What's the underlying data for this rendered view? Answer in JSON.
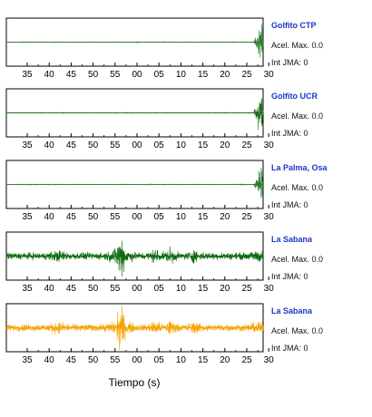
{
  "chart_data": {
    "type": "line",
    "xlabel": "Tiempo (s)",
    "tick_labels": [
      "35",
      "40",
      "45",
      "50",
      "55",
      "00",
      "05",
      "10",
      "15",
      "20",
      "25",
      "30"
    ],
    "panels": [
      {
        "station": "Golfito CTP",
        "peak_accel_label": "Acel. Max. 0.0",
        "intensity_label": "Int JMA: 0",
        "color": "#2e7d32",
        "signal": "late_burst",
        "amplitude_level": 0.08
      },
      {
        "station": "Golfito UCR",
        "peak_accel_label": "Acel. Max. 0.0",
        "intensity_label": "Int JMA: 0",
        "color": "#1b6e1b",
        "signal": "late_burst",
        "amplitude_level": 0.12
      },
      {
        "station": "La Palma, Osa",
        "peak_accel_label": "Acel. Max. 0.0",
        "intensity_label": "Int JMA: 0",
        "color": "#2e7d32",
        "signal": "late_burst",
        "amplitude_level": 0.06
      },
      {
        "station": "La Sabana",
        "peak_accel_label": "Acel. Max. 0.0",
        "intensity_label": "Int JMA: 0",
        "color": "#0d6b0d",
        "signal": "mid_burst",
        "amplitude_level": 0.35
      },
      {
        "station": "La Sabana",
        "peak_accel_label": "Acel. Max. 0.0",
        "intensity_label": "Int JMA: 0",
        "color": "#f5a300",
        "signal": "mid_burst",
        "amplitude_level": 0.35
      }
    ]
  }
}
